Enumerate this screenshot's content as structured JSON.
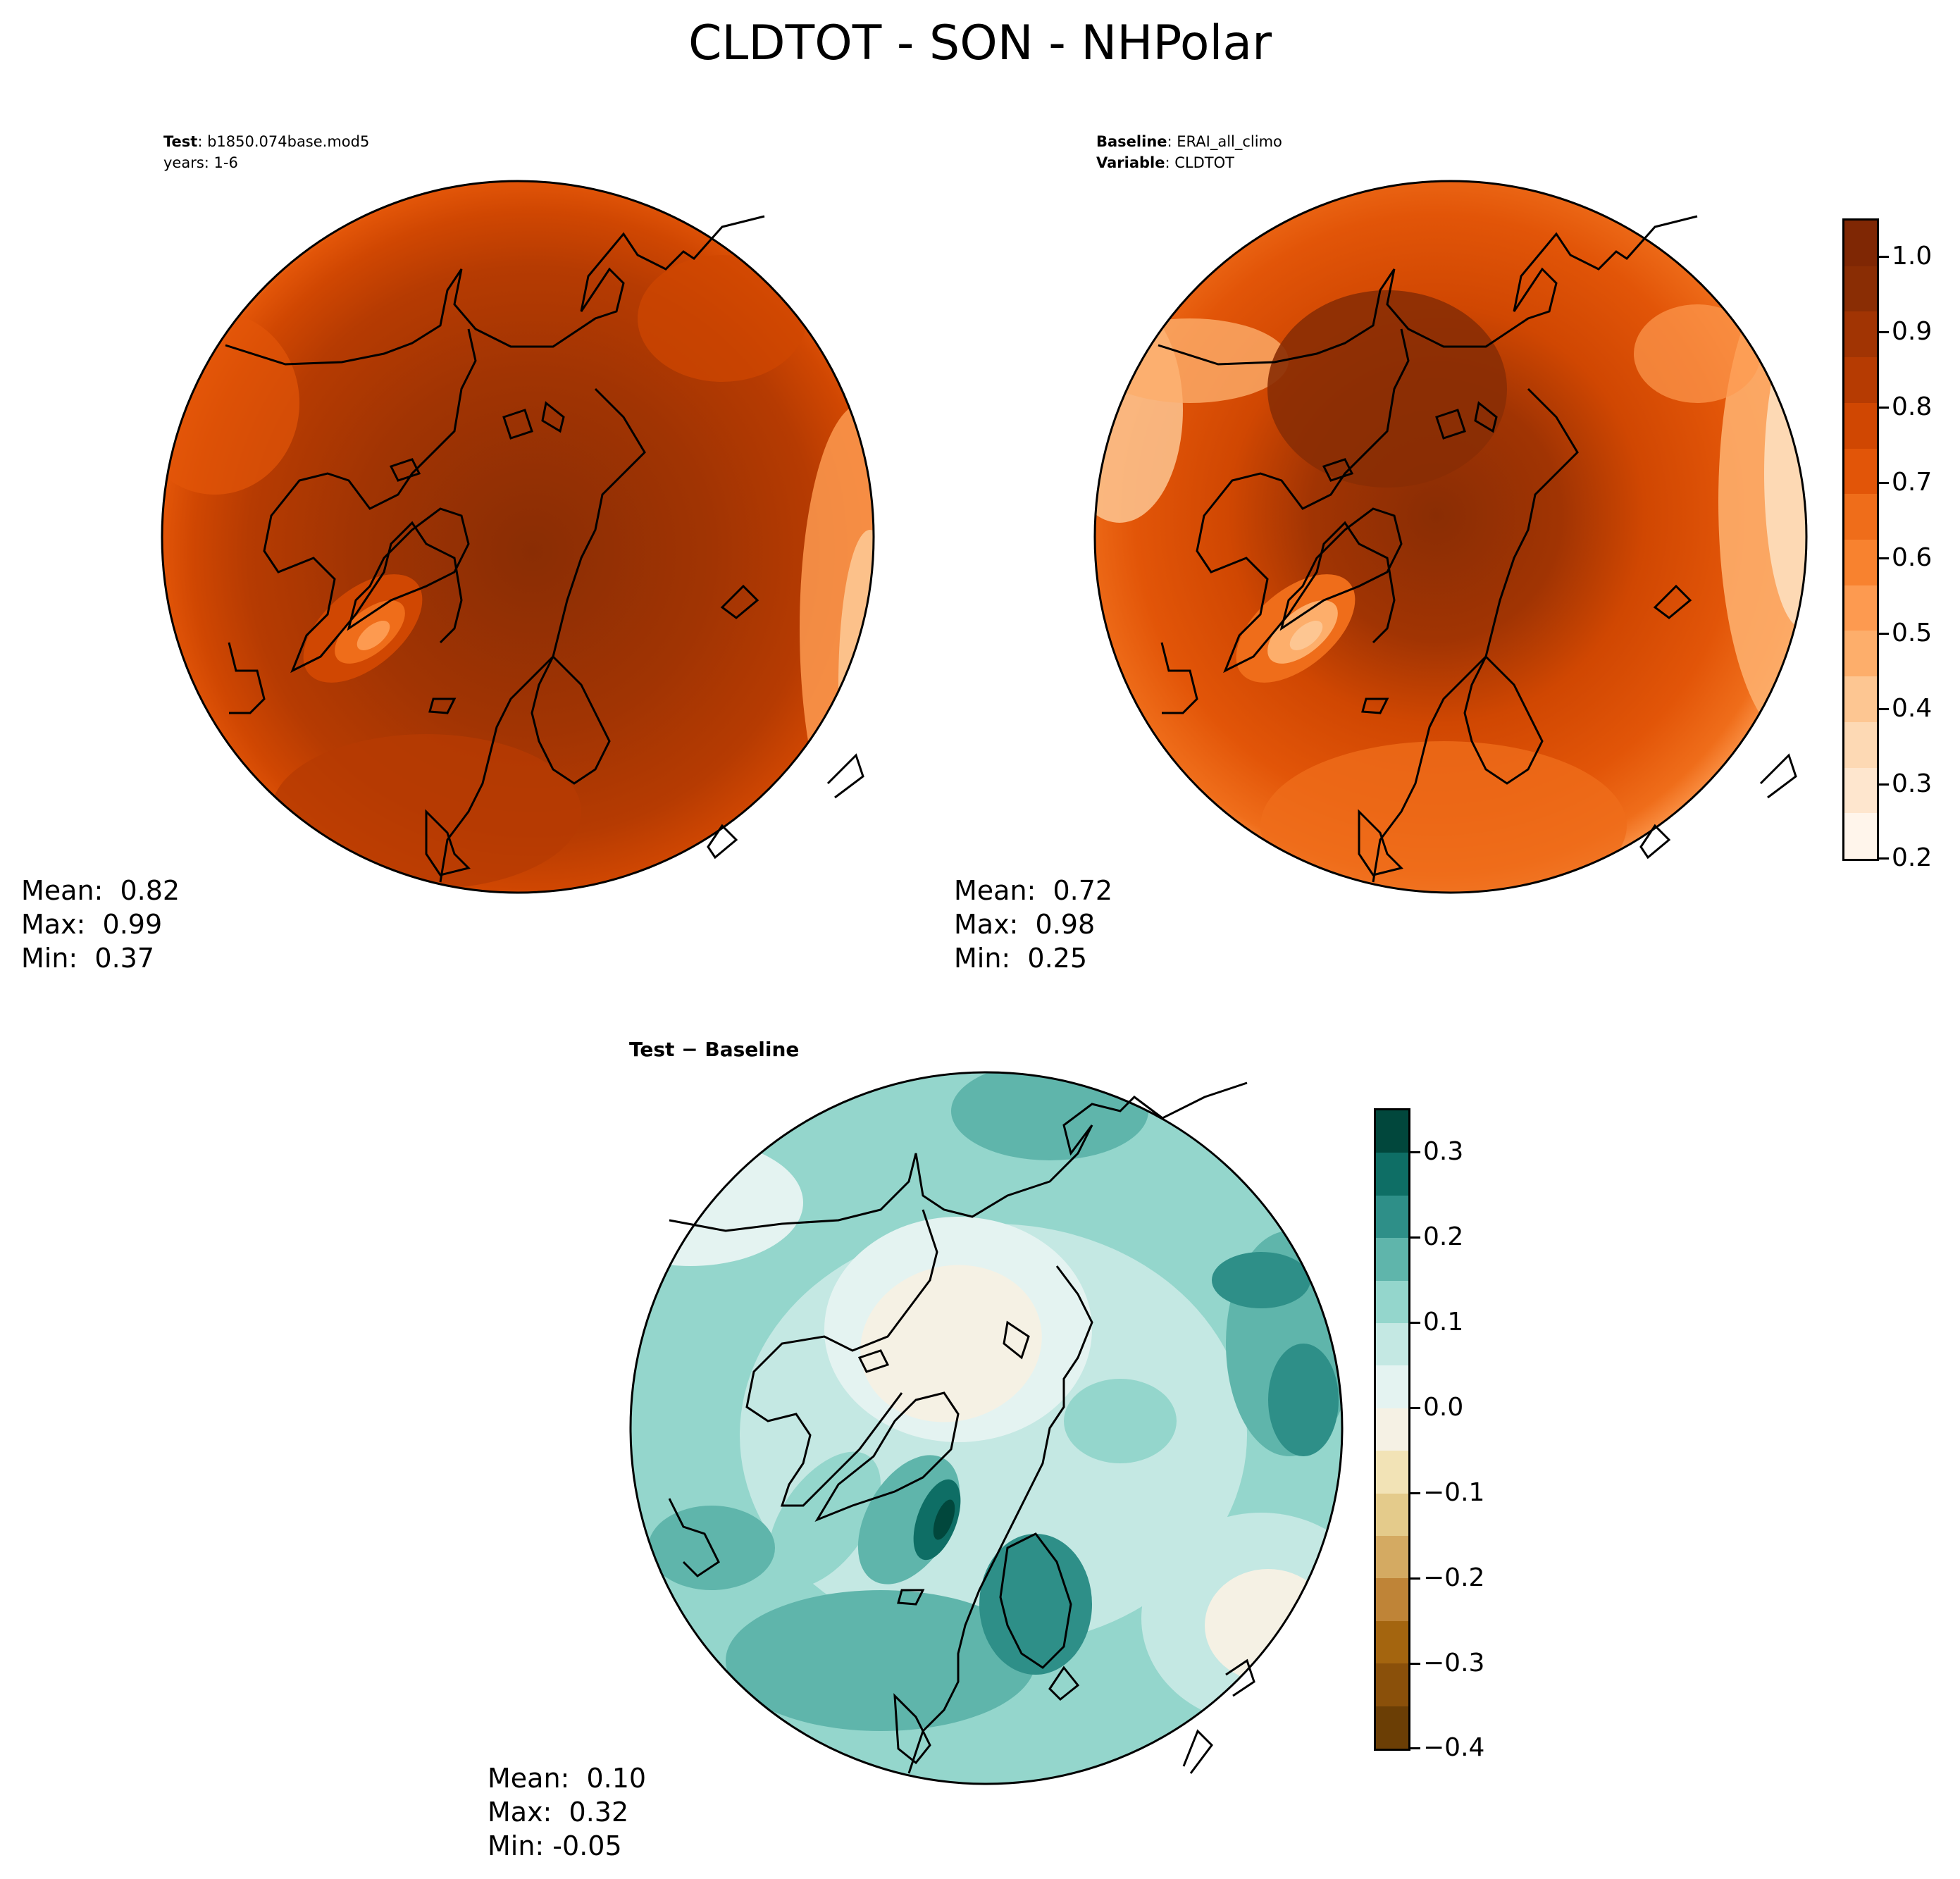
{
  "title": "CLDTOT - SON - NHPolar",
  "panels": {
    "test": {
      "label_key": "Test",
      "label_value": ": b1850.074base.mod5",
      "years": "years: 1-6",
      "mean": "Mean:  0.82",
      "max": "Max:  0.99",
      "min": "Min:  0.37"
    },
    "baseline": {
      "label_key": "Baseline",
      "label_value": ": ERAI_all_climo",
      "variable_key": "Variable",
      "variable_value": ": CLDTOT",
      "mean": "Mean:  0.72",
      "max": "Max:  0.98",
      "min": "Min:  0.25"
    },
    "diff": {
      "title": "Test − Baseline",
      "mean": "Mean:  0.10",
      "max": "Max:  0.32",
      "min": "Min: -0.05"
    }
  },
  "colorbars": {
    "main": {
      "ticks": [
        "1.0",
        "0.9",
        "0.8",
        "0.7",
        "0.6",
        "0.5",
        "0.4",
        "0.3",
        "0.2"
      ],
      "colors": [
        "#fff5eb",
        "#fee6ce",
        "#fdd9b4",
        "#fdc692",
        "#fdae6b",
        "#fd9a50",
        "#f8822f",
        "#ef6d1a",
        "#e25508",
        "#d04702",
        "#b63b02",
        "#a13403",
        "#8a2d04",
        "#7f2704"
      ]
    },
    "diff": {
      "ticks": [
        "0.3",
        "0.2",
        "0.1",
        "0.0",
        "−0.1",
        "−0.2",
        "−0.3",
        "−0.4"
      ],
      "colors": [
        "#6b3e05",
        "#8a500a",
        "#a4650f",
        "#bf8437",
        "#d4aa62",
        "#e4cb8b",
        "#f2e3b6",
        "#f5f1e4",
        "#e4f3f1",
        "#c4e8e3",
        "#94d6cc",
        "#5fb5ab",
        "#2e8f88",
        "#0e6e65",
        "#01473c"
      ]
    }
  }
}
